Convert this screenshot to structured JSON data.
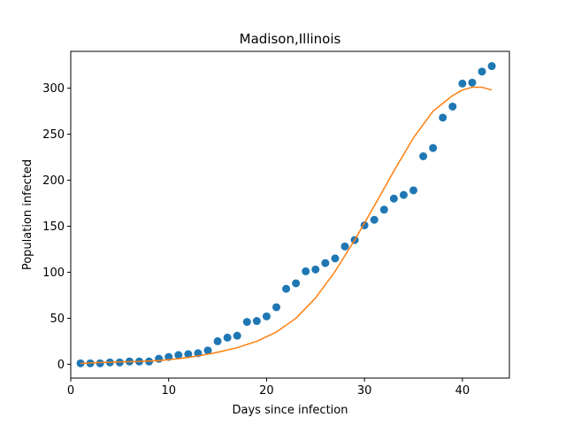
{
  "chart_data": {
    "type": "scatter",
    "title": "Madison,Illinois",
    "xlabel": "Days since infection",
    "ylabel": "Population infected",
    "xlim": [
      0,
      44.8
    ],
    "ylim": [
      -15,
      340
    ],
    "xticks": [
      0,
      10,
      20,
      30,
      40
    ],
    "yticks": [
      0,
      50,
      100,
      150,
      200,
      250,
      300
    ],
    "grid": false,
    "series": [
      {
        "kind": "scatter",
        "color": "#1f77b4",
        "x": [
          1,
          2,
          3,
          4,
          5,
          6,
          7,
          8,
          9,
          10,
          11,
          12,
          13,
          14,
          15,
          16,
          17,
          18,
          19,
          20,
          21,
          22,
          23,
          24,
          25,
          26,
          27,
          28,
          29,
          30,
          31,
          32,
          33,
          34,
          35,
          36,
          37,
          38,
          39,
          40,
          41,
          42,
          43
        ],
        "y": [
          1,
          1,
          1,
          2,
          2,
          3,
          3,
          3,
          6,
          8,
          10,
          11,
          12,
          15,
          25,
          29,
          31,
          46,
          47,
          52,
          62,
          82,
          88,
          101,
          103,
          110,
          115,
          128,
          135,
          151,
          157,
          168,
          180,
          184,
          189,
          226,
          235,
          268,
          280,
          305,
          306,
          318,
          324
        ]
      },
      {
        "kind": "line",
        "color": "#ff7f0e",
        "x": [
          1,
          3,
          5,
          7,
          9,
          11,
          13,
          15,
          17,
          19,
          21,
          23,
          25,
          27,
          29,
          31,
          33,
          35,
          37,
          39,
          40,
          41,
          42,
          43
        ],
        "y": [
          1,
          2,
          2.5,
          3,
          4,
          6,
          9,
          13,
          18,
          25,
          35,
          50,
          72,
          101,
          135,
          172,
          210,
          246,
          275,
          292,
          298,
          301,
          301,
          298
        ]
      }
    ]
  }
}
